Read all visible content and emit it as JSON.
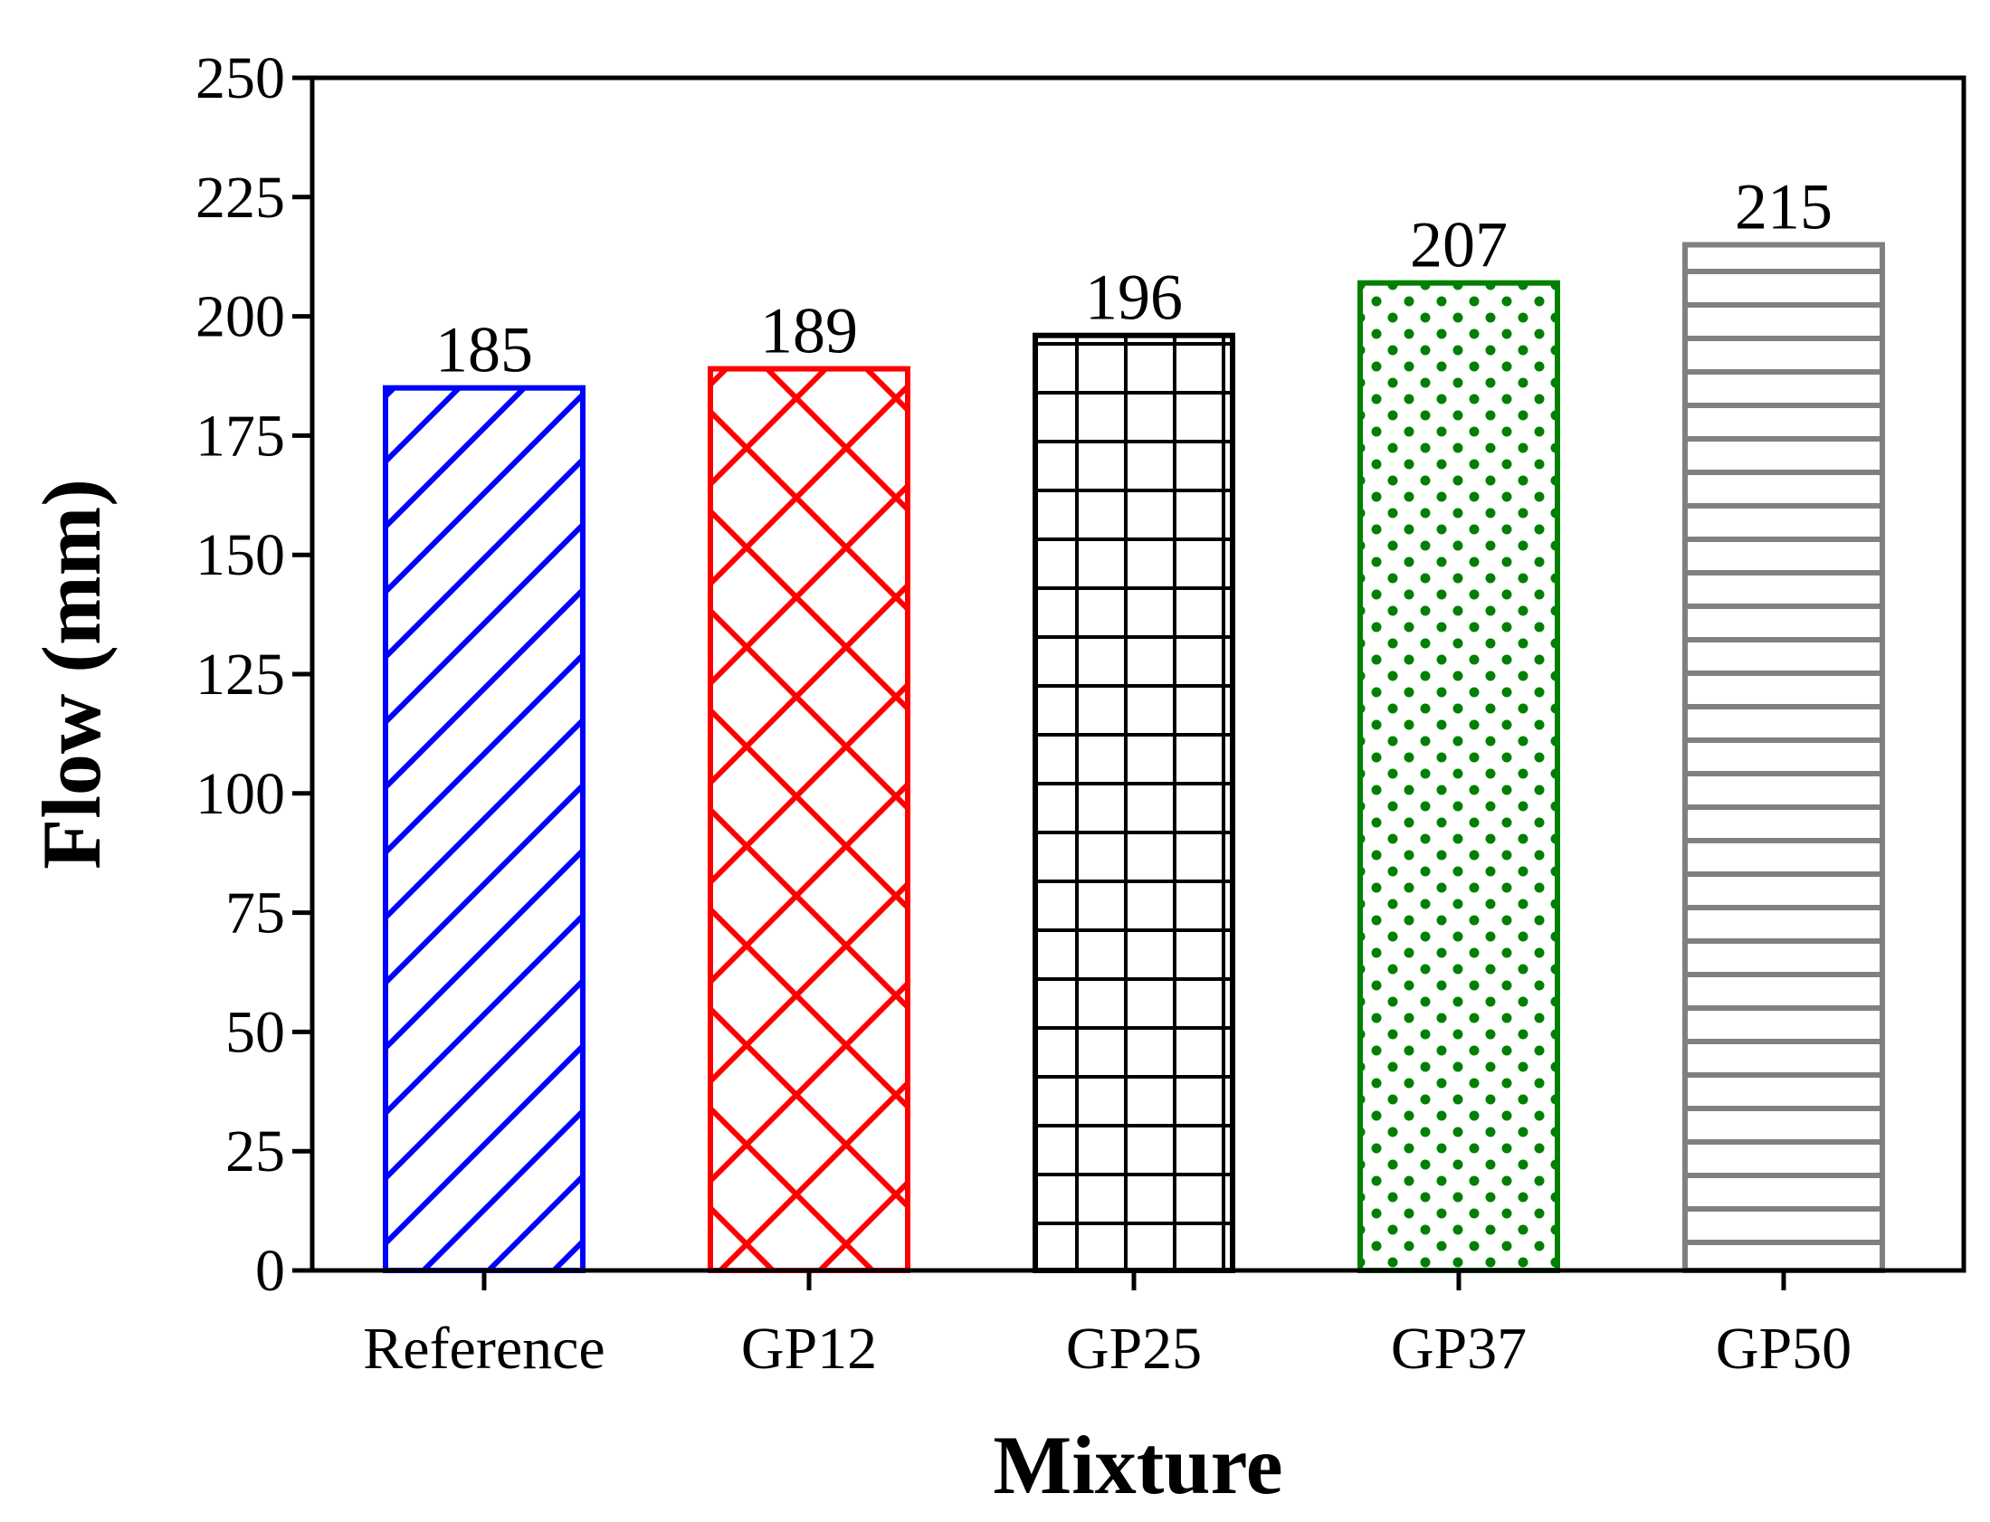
{
  "chart_data": {
    "type": "bar",
    "title": "",
    "xlabel": "Mixture",
    "ylabel": "Flow (mm)",
    "categories": [
      "Reference",
      "GP12",
      "GP25",
      "GP37",
      "GP50"
    ],
    "values": [
      185,
      189,
      196,
      207,
      215
    ],
    "data_labels": [
      "185",
      "189",
      "196",
      "207",
      "215"
    ],
    "ylim": [
      0,
      250
    ],
    "yticks": [
      0,
      25,
      50,
      75,
      100,
      125,
      150,
      175,
      200,
      225,
      250
    ],
    "ytick_labels": [
      "0",
      "25",
      "50",
      "75",
      "100",
      "125",
      "150",
      "175",
      "200",
      "225",
      "250"
    ],
    "grid": false,
    "bars": [
      {
        "name": "Reference",
        "color": "#0000ff",
        "hatch": "diagonal"
      },
      {
        "name": "GP12",
        "color": "#ff0000",
        "hatch": "crosshatch"
      },
      {
        "name": "GP25",
        "color": "#000000",
        "hatch": "grid"
      },
      {
        "name": "GP37",
        "color": "#008000",
        "hatch": "dots"
      },
      {
        "name": "GP50",
        "color": "#808080",
        "hatch": "horizontal"
      }
    ]
  }
}
